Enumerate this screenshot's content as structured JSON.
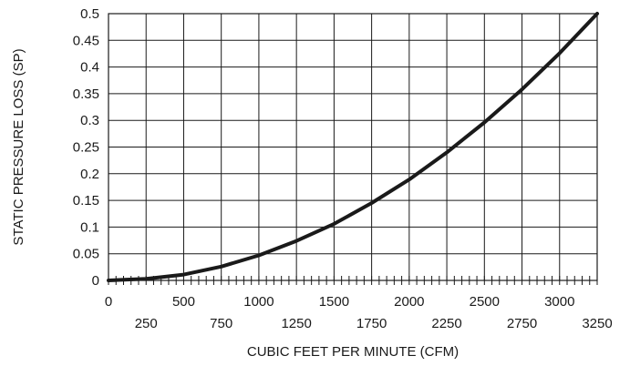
{
  "chart_data": {
    "type": "line",
    "xlabel": "CUBIC FEET PER MINUTE (CFM)",
    "ylabel": "STATIC PRESSURE LOSS (SP)",
    "xlim": [
      0,
      3250
    ],
    "ylim": [
      0,
      0.5
    ],
    "grid": true,
    "x_ticks_upper": [
      "0",
      "500",
      "1000",
      "1500",
      "2000",
      "2500",
      "3000"
    ],
    "x_ticks_lower": [
      "250",
      "750",
      "1250",
      "1750",
      "2250",
      "2750",
      "3250"
    ],
    "y_ticks": [
      "0",
      "0.05",
      "0.1",
      "0.15",
      "0.2",
      "0.25",
      "0.3",
      "0.35",
      "0.4",
      "0.45",
      "0.5"
    ],
    "series": [
      {
        "x": [
          0,
          250,
          500,
          750,
          1000,
          1250,
          1500,
          1750,
          2000,
          2250,
          2500,
          2750,
          3000,
          3250
        ],
        "y": [
          0,
          0.003,
          0.011,
          0.026,
          0.047,
          0.074,
          0.106,
          0.145,
          0.189,
          0.24,
          0.296,
          0.358,
          0.426,
          0.5
        ]
      }
    ]
  }
}
